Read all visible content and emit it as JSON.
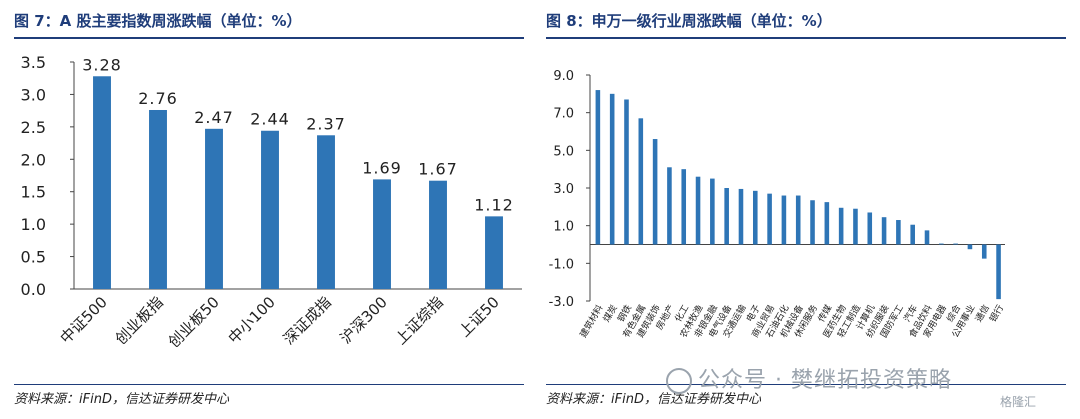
{
  "left_panel": {
    "title": "图 7：A 股主要指数周涨跌幅（单位：%）",
    "source": "资料来源：iFinD，信达证券研发中心"
  },
  "right_panel": {
    "title": "图 8：申万一级行业周涨跌幅（单位：%）",
    "source": "资料来源：iFinD，信达证券研发中心"
  },
  "watermark": {
    "text": "公众号 · 樊继拓投资策略",
    "logo": "格隆汇"
  },
  "colors": {
    "bar": "#2e75b6",
    "title": "#1f3d7a"
  },
  "chart_data": [
    {
      "type": "bar",
      "categories": [
        "中证500",
        "创业板指",
        "创业板50",
        "中小100",
        "深证成指",
        "沪深300",
        "上证综指",
        "上证50"
      ],
      "values": [
        3.28,
        2.76,
        2.47,
        2.44,
        2.37,
        1.69,
        1.67,
        1.12
      ],
      "value_labels": [
        "3.28",
        "2.76",
        "2.47",
        "2.44",
        "2.37",
        "1.69",
        "1.67",
        "1.12"
      ],
      "yticks": [
        "0.0",
        "0.5",
        "1.0",
        "1.5",
        "2.0",
        "2.5",
        "3.0",
        "3.5"
      ],
      "ylim": [
        0,
        3.5
      ]
    },
    {
      "type": "bar",
      "categories": [
        "建筑材料",
        "煤炭",
        "钢铁",
        "有色金属",
        "建筑装饰",
        "房地产",
        "化工",
        "农林牧渔",
        "非银金融",
        "电气设备",
        "交通运输",
        "电子",
        "商业贸易",
        "石油石化",
        "机械设备",
        "休闲服务",
        "传媒",
        "医药生物",
        "轻工制造",
        "计算机",
        "纺织服装",
        "国防军工",
        "汽车",
        "食品饮料",
        "家用电器",
        "综合",
        "公用事业",
        "通信",
        "银行"
      ],
      "values": [
        8.2,
        8.0,
        7.7,
        6.7,
        5.6,
        4.1,
        4.0,
        3.6,
        3.5,
        3.0,
        2.95,
        2.85,
        2.7,
        2.6,
        2.6,
        2.35,
        2.25,
        1.95,
        1.9,
        1.7,
        1.45,
        1.3,
        1.05,
        0.75,
        0.05,
        0.05,
        -0.25,
        -0.75,
        -2.9
      ],
      "yticks": [
        "9.0",
        "7.0",
        "5.0",
        "3.0",
        "1.0",
        "-1.0",
        "-3.0"
      ],
      "ylim": [
        -3,
        9
      ]
    }
  ]
}
